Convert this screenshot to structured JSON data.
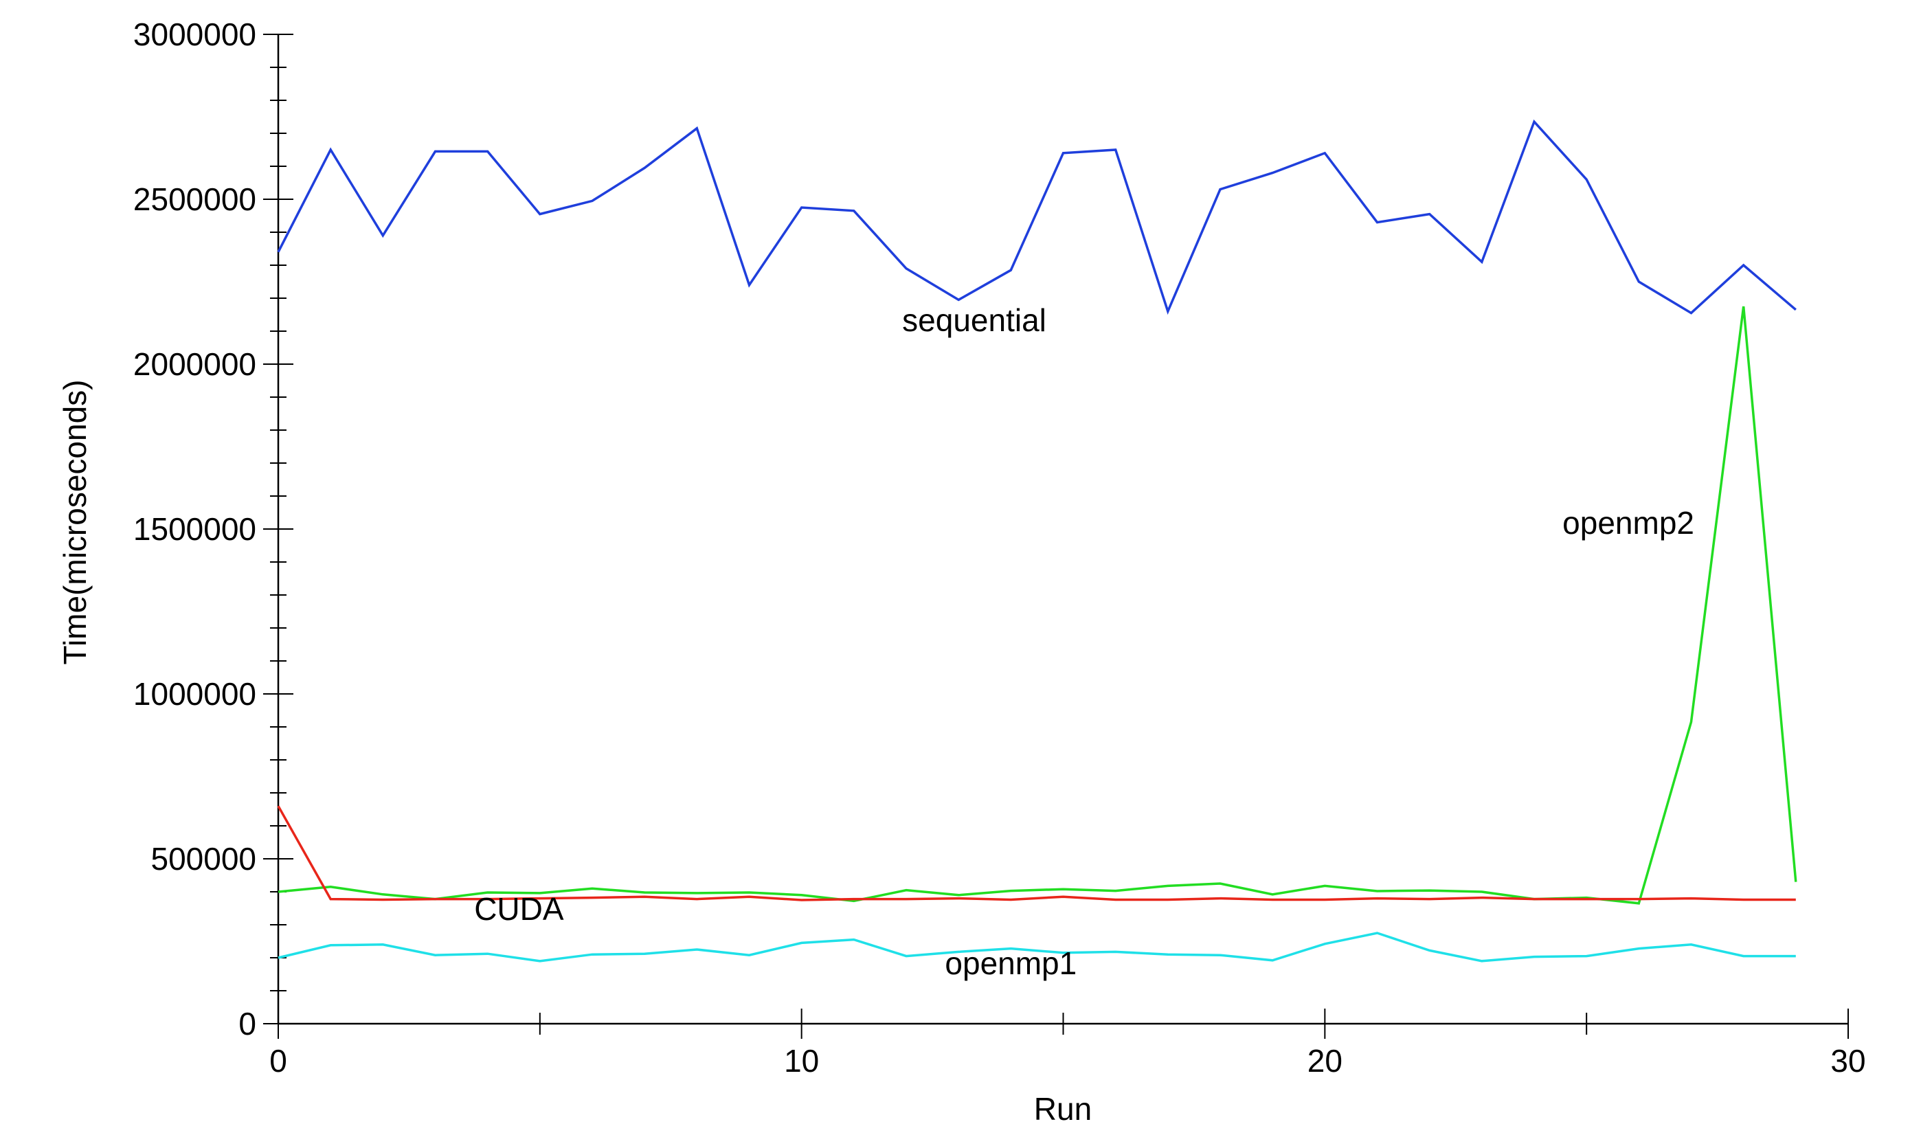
{
  "chart_data": {
    "type": "line",
    "title": "",
    "xlabel": "Run",
    "ylabel": "Time(microseconds)",
    "xlim": [
      0,
      30
    ],
    "ylim": [
      0,
      3000000
    ],
    "x_ticks": [
      0,
      10,
      20,
      30
    ],
    "x_tick_labels": [
      "0",
      "10",
      "20",
      "30"
    ],
    "y_ticks": [
      0,
      500000,
      1000000,
      1500000,
      2000000,
      2500000,
      3000000
    ],
    "y_tick_labels": [
      "0",
      "500000",
      "1000000",
      "1500000",
      "2000000",
      "2500000",
      "3000000"
    ],
    "x_minor_step": 1,
    "y_minor_step": 100000,
    "grid": false,
    "legend": "none",
    "x": [
      0,
      1,
      2,
      3,
      4,
      5,
      6,
      7,
      8,
      9,
      10,
      11,
      12,
      13,
      14,
      15,
      16,
      17,
      18,
      19,
      20,
      21,
      22,
      23,
      24,
      25,
      26,
      27,
      28,
      29
    ],
    "series": [
      {
        "name": "sequential",
        "color": "#1f3fdc",
        "label_at": [
          13.3,
          2100000
        ],
        "values": [
          2340000,
          2650000,
          2390000,
          2645000,
          2645000,
          2455000,
          2495000,
          2595000,
          2715000,
          2240000,
          2475000,
          2465000,
          2290000,
          2195000,
          2285000,
          2640000,
          2650000,
          2160000,
          2530000,
          2580000,
          2640000,
          2430000,
          2455000,
          2310000,
          2735000,
          2560000,
          2250000,
          2155000,
          2300000,
          2165000
        ]
      },
      {
        "name": "openmp2",
        "color": "#22dd22",
        "label_at": [
          25.8,
          1485000
        ],
        "values": [
          400000,
          415000,
          392000,
          378000,
          398000,
          396000,
          410000,
          398000,
          396000,
          398000,
          390000,
          372000,
          405000,
          390000,
          403000,
          408000,
          403000,
          418000,
          425000,
          392000,
          418000,
          402000,
          404000,
          400000,
          378000,
          382000,
          365000,
          915000,
          2175000,
          430000
        ]
      },
      {
        "name": "CUDA",
        "color": "#e8261a",
        "label_at": [
          4.6,
          315000
        ],
        "values": [
          660000,
          378000,
          376000,
          378000,
          378000,
          380000,
          382000,
          385000,
          378000,
          385000,
          375000,
          378000,
          378000,
          380000,
          376000,
          385000,
          376000,
          376000,
          380000,
          376000,
          376000,
          380000,
          378000,
          382000,
          378000,
          378000,
          378000,
          380000,
          376000,
          376000
        ]
      },
      {
        "name": "openmp1",
        "color": "#1fe0e8",
        "label_at": [
          14.0,
          150000
        ],
        "values": [
          200000,
          238000,
          240000,
          208000,
          212000,
          190000,
          210000,
          212000,
          225000,
          208000,
          245000,
          255000,
          205000,
          218000,
          228000,
          215000,
          218000,
          210000,
          208000,
          192000,
          242000,
          275000,
          222000,
          190000,
          203000,
          205000,
          228000,
          240000,
          205000,
          205000
        ]
      }
    ]
  }
}
